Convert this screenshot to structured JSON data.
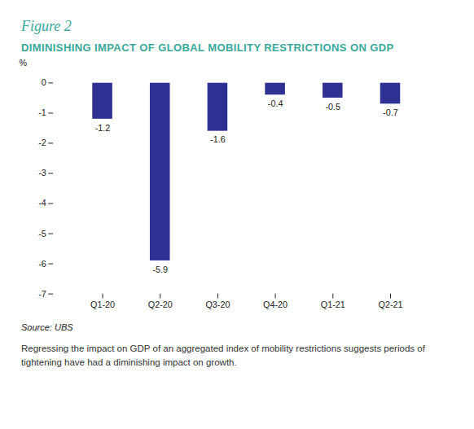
{
  "chart_data": {
    "type": "bar",
    "figure_label": "Figure 2",
    "title": "DIMINISHING IMPACT OF GLOBAL MOBILITY RESTRICTIONS ON GDP",
    "y_label": "%",
    "categories": [
      "Q1-20",
      "Q2-20",
      "Q3-20",
      "Q4-20",
      "Q1-21",
      "Q2-21"
    ],
    "values": [
      -1.2,
      -5.9,
      -1.6,
      -0.4,
      -0.5,
      -0.7
    ],
    "color": "#2e3192",
    "ylim": [
      -7,
      0
    ],
    "yticks": [
      0,
      -1,
      -2,
      -3,
      -4,
      -5,
      -6,
      -7
    ],
    "grid": false,
    "data_labels": true,
    "source": "Source: UBS",
    "caption": "Regressing the impact on GDP of an aggregated index of mobility restrictions suggests periods of tightening have had a diminishing impact on growth."
  }
}
